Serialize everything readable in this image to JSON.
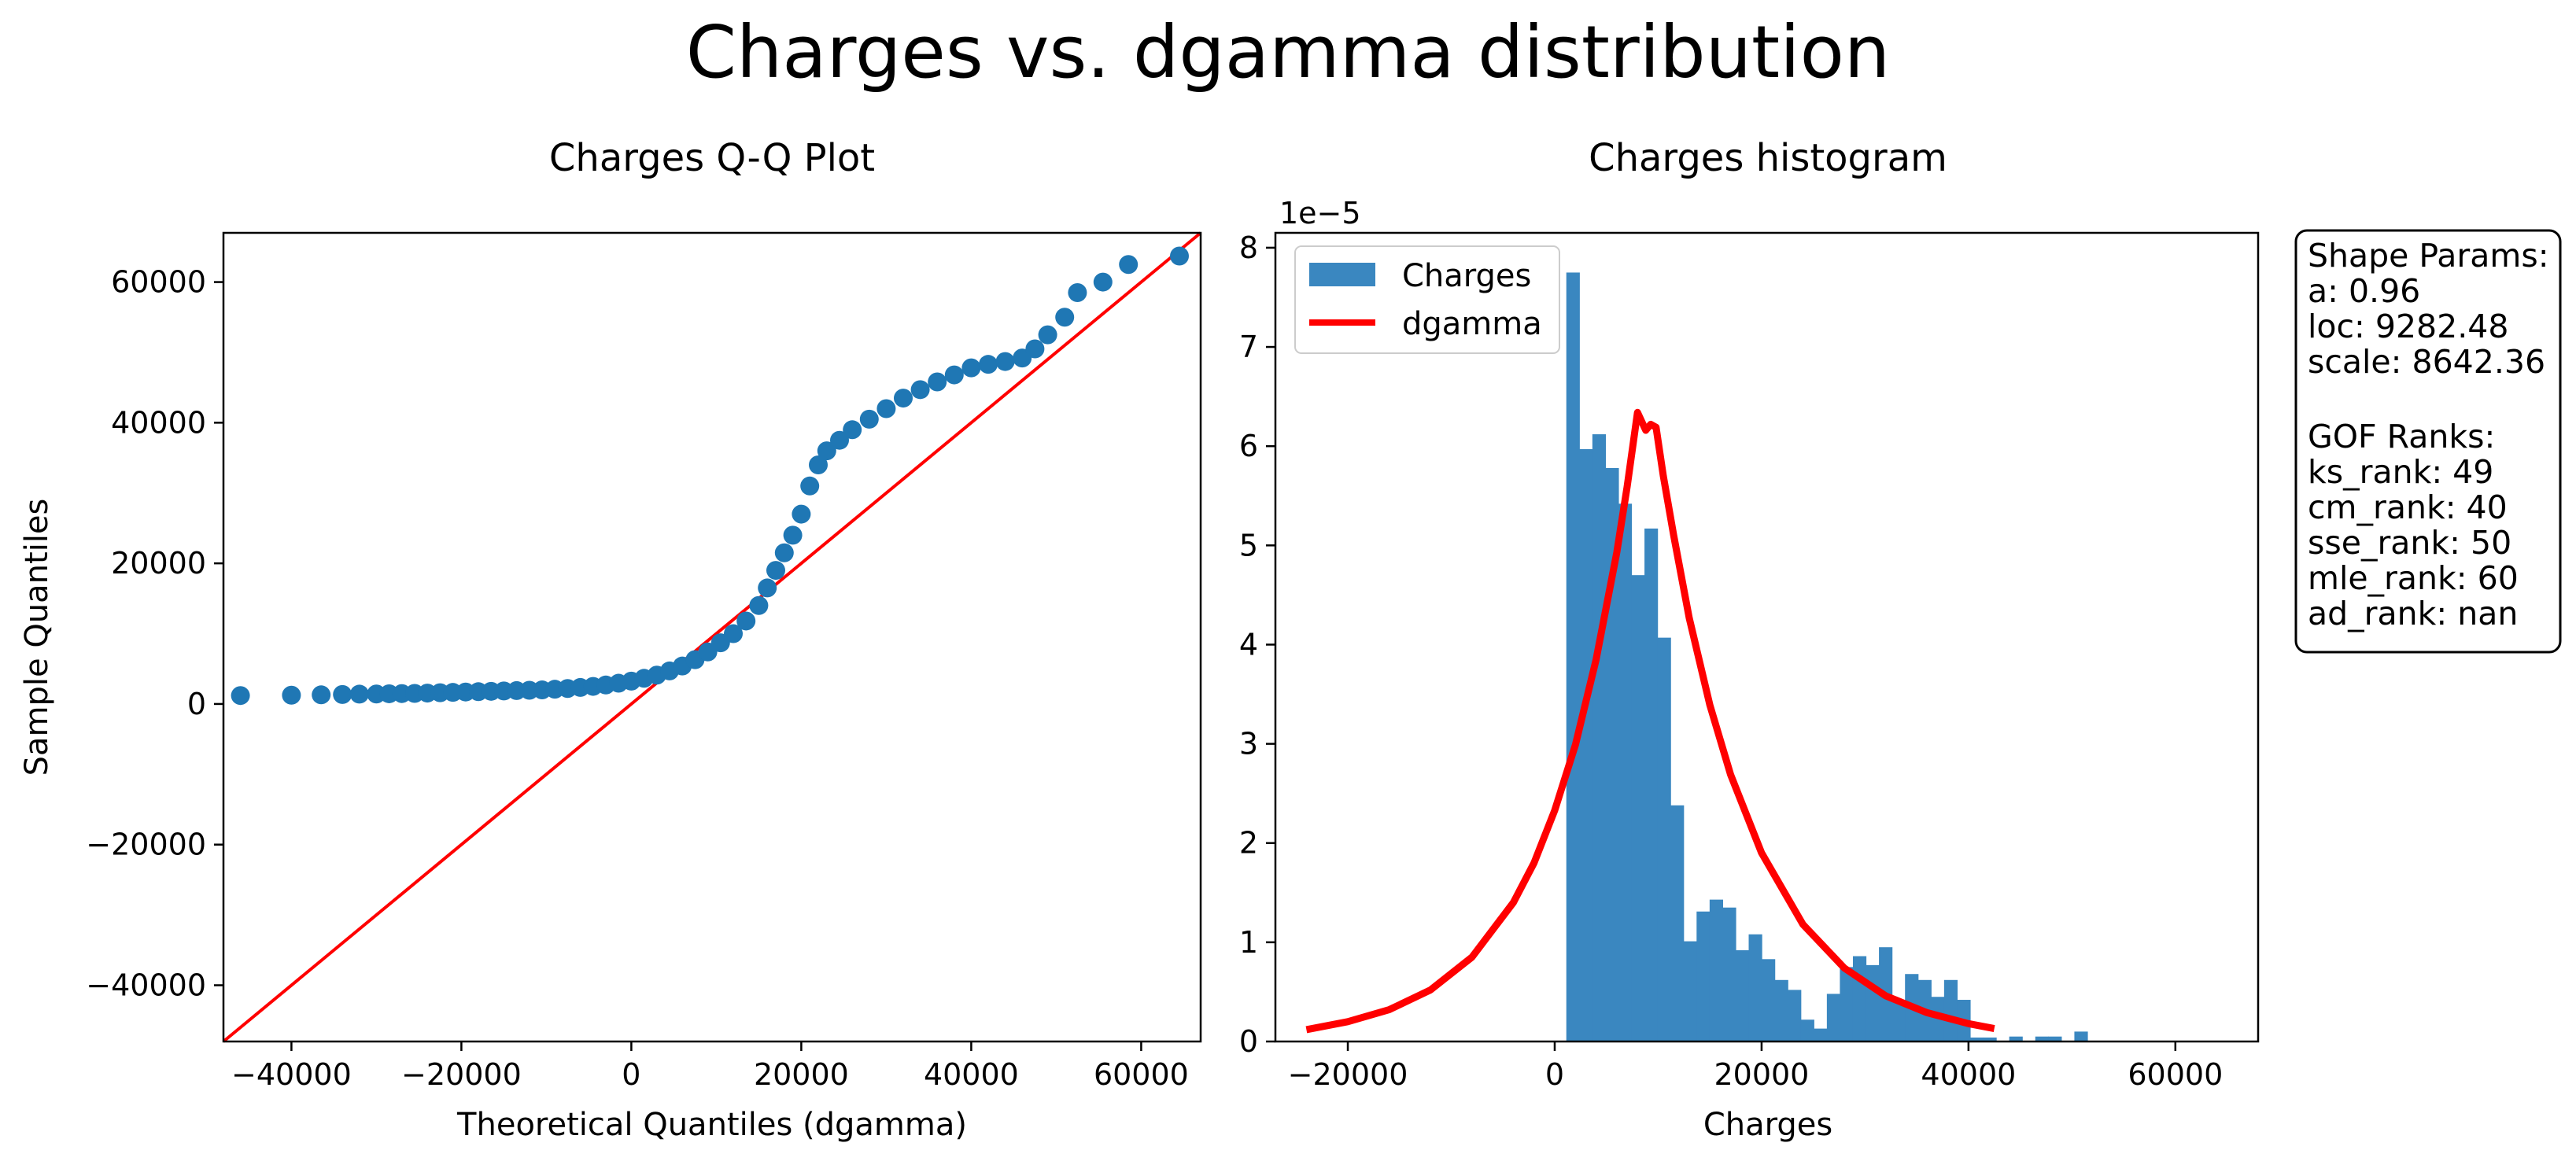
{
  "figure": {
    "suptitle": "Charges vs. dgamma distribution"
  },
  "info_box": {
    "lines": [
      "Shape Params:",
      "a: 0.96",
      "loc: 9282.48",
      "scale: 8642.36",
      "",
      "GOF Ranks:",
      "ks_rank: 49",
      "cm_rank: 40",
      "sse_rank: 50",
      "mle_rank: 60",
      "ad_rank: nan"
    ]
  },
  "colors": {
    "points": "#1f77b4",
    "bars": "#3a87c0",
    "fit_line": "#ff0000",
    "ref_line": "#ff0000"
  },
  "chart_data": [
    {
      "type": "scatter",
      "title": "Charges Q-Q Plot",
      "xlabel": "Theoretical Quantiles (dgamma)",
      "ylabel": "Sample Quantiles",
      "xlim": [
        -48000,
        67000
      ],
      "ylim": [
        -48000,
        67000
      ],
      "xticks": [
        -40000,
        -20000,
        0,
        20000,
        40000,
        60000
      ],
      "yticks": [
        -40000,
        -20000,
        0,
        20000,
        40000,
        60000
      ],
      "reference_line": {
        "x": [
          -48000,
          67000
        ],
        "y": [
          -48000,
          67000
        ]
      },
      "series": [
        {
          "points": [
            [
              -46000,
              1200
            ],
            [
              -40000,
              1250
            ],
            [
              -36500,
              1300
            ],
            [
              -34000,
              1350
            ],
            [
              -32000,
              1400
            ],
            [
              -30000,
              1420
            ],
            [
              -28500,
              1450
            ],
            [
              -27000,
              1480
            ],
            [
              -25500,
              1500
            ],
            [
              -24000,
              1550
            ],
            [
              -22500,
              1600
            ],
            [
              -21000,
              1650
            ],
            [
              -19500,
              1700
            ],
            [
              -18000,
              1750
            ],
            [
              -16500,
              1800
            ],
            [
              -15000,
              1850
            ],
            [
              -13500,
              1900
            ],
            [
              -12000,
              1950
            ],
            [
              -10500,
              2000
            ],
            [
              -9000,
              2100
            ],
            [
              -7500,
              2200
            ],
            [
              -6000,
              2350
            ],
            [
              -4500,
              2500
            ],
            [
              -3000,
              2700
            ],
            [
              -1500,
              2950
            ],
            [
              0,
              3250
            ],
            [
              1500,
              3650
            ],
            [
              3000,
              4100
            ],
            [
              4500,
              4700
            ],
            [
              6000,
              5400
            ],
            [
              7500,
              6300
            ],
            [
              9000,
              7400
            ],
            [
              10500,
              8700
            ],
            [
              12000,
              10000
            ],
            [
              13500,
              11800
            ],
            [
              15000,
              14000
            ],
            [
              16000,
              16500
            ],
            [
              17000,
              19000
            ],
            [
              18000,
              21500
            ],
            [
              19000,
              24000
            ],
            [
              20000,
              27000
            ],
            [
              21000,
              31000
            ],
            [
              22000,
              34000
            ],
            [
              23000,
              36000
            ],
            [
              24500,
              37500
            ],
            [
              26000,
              39000
            ],
            [
              28000,
              40500
            ],
            [
              30000,
              42000
            ],
            [
              32000,
              43500
            ],
            [
              34000,
              44700
            ],
            [
              36000,
              45800
            ],
            [
              38000,
              46800
            ],
            [
              40000,
              47800
            ],
            [
              42000,
              48300
            ],
            [
              44000,
              48700
            ],
            [
              46000,
              49200
            ],
            [
              47500,
              50500
            ],
            [
              49000,
              52500
            ],
            [
              51000,
              55000
            ],
            [
              52500,
              58500
            ],
            [
              55500,
              60000
            ],
            [
              58500,
              62500
            ],
            [
              64500,
              63700
            ]
          ]
        }
      ]
    },
    {
      "type": "bar",
      "title": "Charges histogram",
      "xlabel": "Charges",
      "ylabel": "",
      "y_offset_label": "1e−5",
      "xlim": [
        -27000,
        68000
      ],
      "ylim": [
        0,
        8.15
      ],
      "xticks": [
        -20000,
        0,
        20000,
        40000,
        60000
      ],
      "yticks": [
        0,
        1,
        2,
        3,
        4,
        5,
        6,
        7,
        8
      ],
      "bin_start": 1122,
      "bin_width": 1259.3,
      "series": [
        {
          "name": "Charges",
          "values": [
            7.75,
            5.97,
            6.12,
            5.78,
            5.42,
            4.7,
            5.17,
            4.07,
            2.38,
            1.01,
            1.31,
            1.43,
            1.35,
            0.92,
            1.08,
            0.83,
            0.62,
            0.52,
            0.22,
            0.13,
            0.48,
            0.75,
            0.86,
            0.77,
            0.95,
            0.42,
            0.68,
            0.62,
            0.45,
            0.62,
            0.42,
            0.04,
            0.04,
            0,
            0.05,
            0,
            0.05,
            0.05,
            0,
            0.1
          ]
        },
        {
          "name": "dgamma",
          "type": "line",
          "x": [
            -24000,
            -20000,
            -16000,
            -12000,
            -8000,
            -4000,
            -2000,
            0,
            2000,
            4000,
            6000,
            7000,
            8000,
            8800,
            9282,
            9800,
            10500,
            11500,
            13000,
            15000,
            17000,
            20000,
            24000,
            28000,
            32000,
            36000,
            40000,
            42500
          ],
          "y": [
            0.12,
            0.2,
            0.32,
            0.52,
            0.85,
            1.4,
            1.8,
            2.33,
            2.99,
            3.85,
            4.93,
            5.59,
            6.34,
            6.16,
            6.22,
            6.19,
            5.7,
            5.1,
            4.27,
            3.39,
            2.69,
            1.9,
            1.18,
            0.74,
            0.46,
            0.29,
            0.18,
            0.13
          ]
        }
      ]
    }
  ]
}
